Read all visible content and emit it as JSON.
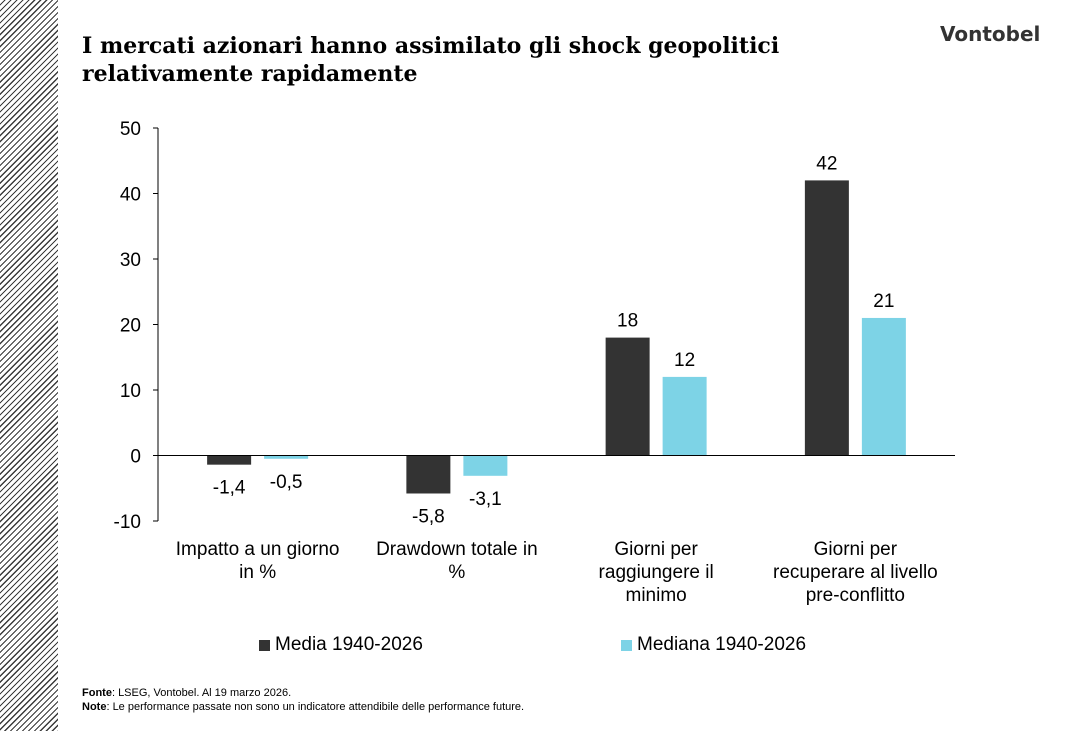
{
  "header": {
    "title_line1": "I mercati azionari hanno assimilato gli shock geopolitici",
    "title_line2": "relativamente rapidamente",
    "logo": "Vontobel"
  },
  "chart_data": {
    "type": "bar",
    "categories": [
      [
        "Impatto a un giorno",
        "in %"
      ],
      [
        "Drawdown totale in",
        "%"
      ],
      [
        "Giorni per",
        "raggiungere il",
        "minimo"
      ],
      [
        "Giorni per",
        "recuperare al livello",
        "pre-conflitto"
      ]
    ],
    "series": [
      {
        "name": "Media 1940-2026",
        "color": "#333333",
        "values": [
          -1.4,
          -5.8,
          18,
          42
        ],
        "labels": [
          "-1,4",
          "-5,8",
          "18",
          "42"
        ]
      },
      {
        "name": "Mediana 1940-2026",
        "color": "#7dd3e6",
        "values": [
          -0.5,
          -3.1,
          12,
          21
        ],
        "labels": [
          "-0,5",
          "-3,1",
          "12",
          "21"
        ]
      }
    ],
    "ylim": [
      -10,
      50
    ],
    "yticks": [
      -10,
      0,
      10,
      20,
      30,
      40,
      50
    ],
    "grid": false,
    "legend": "bottom"
  },
  "footer": {
    "source_label": "Fonte",
    "source_text": ": LSEG, Vontobel. Al 19 marzo 2026.",
    "note_label": "Note",
    "note_text": ": Le performance passate non sono un indicatore attendibile delle performance future."
  }
}
